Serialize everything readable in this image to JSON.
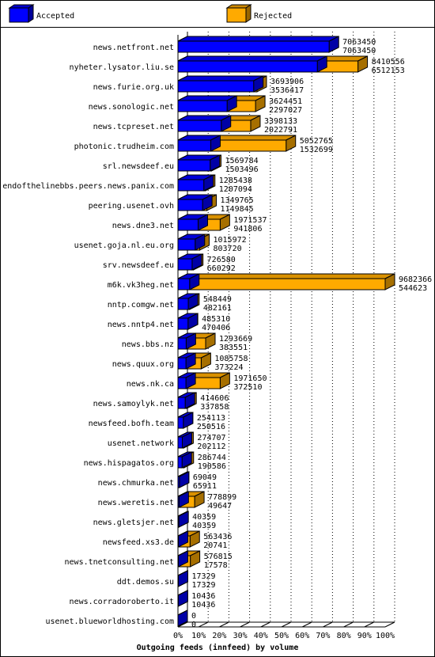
{
  "chart_data": {
    "type": "bar3d",
    "title": "Outgoing feeds (innfeed) by volume",
    "legend": [
      {
        "name": "Accepted",
        "color": "#0000ff"
      },
      {
        "name": "Rejected",
        "color": "#ffaa00"
      }
    ],
    "categories": [
      "news.netfront.net",
      "nyheter.lysator.liu.se",
      "news.furie.org.uk",
      "news.sonologic.net",
      "news.tcpreset.net",
      "photonic.trudheim.com",
      "srl.newsdeef.eu",
      "endofthelinebbs.peers.news.panix.com",
      "peering.usenet.ovh",
      "news.dne3.net",
      "usenet.goja.nl.eu.org",
      "srv.newsdeef.eu",
      "m6k.vk3heg.net",
      "nntp.comgw.net",
      "news.nntp4.net",
      "news.bbs.nz",
      "news.quux.org",
      "news.nk.ca",
      "news.samoylyk.net",
      "newsfeed.bofh.team",
      "usenet.network",
      "news.hispagatos.org",
      "news.chmurka.net",
      "news.weretis.net",
      "news.gletsjer.net",
      "newsfeed.xs3.de",
      "news.tnetconsulting.net",
      "ddt.demos.su",
      "news.corradoroberto.it",
      "usenet.blueworldhosting.com"
    ],
    "totals": [
      7063450,
      8410556,
      3693906,
      3624451,
      3398133,
      5052765,
      1569784,
      1285438,
      1349765,
      1971537,
      1015972,
      726580,
      9682366,
      548449,
      485310,
      1293669,
      1085758,
      1971650,
      414606,
      254113,
      274707,
      286744,
      69049,
      778899,
      40359,
      563436,
      576815,
      17329,
      10436,
      0
    ],
    "accepted": [
      7063450,
      6512153,
      3536417,
      2297027,
      2022791,
      1532699,
      1503496,
      1207094,
      1149845,
      941806,
      803720,
      660292,
      544623,
      482161,
      470406,
      383551,
      373224,
      372510,
      337858,
      250516,
      202112,
      190586,
      65911,
      49647,
      40359,
      20741,
      17578,
      17329,
      10436,
      0
    ],
    "xlim": [
      0,
      9682366
    ],
    "xticks": [
      {
        "value": 0,
        "label": "0%"
      },
      {
        "value": 968236.6,
        "label": "10%"
      },
      {
        "value": 1936473.2,
        "label": "20%"
      },
      {
        "value": 2904709.8,
        "label": "30%"
      },
      {
        "value": 3872946.4,
        "label": "40%"
      },
      {
        "value": 4841183,
        "label": "50%"
      },
      {
        "value": 5809419.6,
        "label": "60%"
      },
      {
        "value": 6777656.2,
        "label": "70%"
      },
      {
        "value": 7745892.8,
        "label": "80%"
      },
      {
        "value": 8714129.4,
        "label": "90%"
      },
      {
        "value": 9682366,
        "label": "100%"
      }
    ],
    "grid": true
  }
}
